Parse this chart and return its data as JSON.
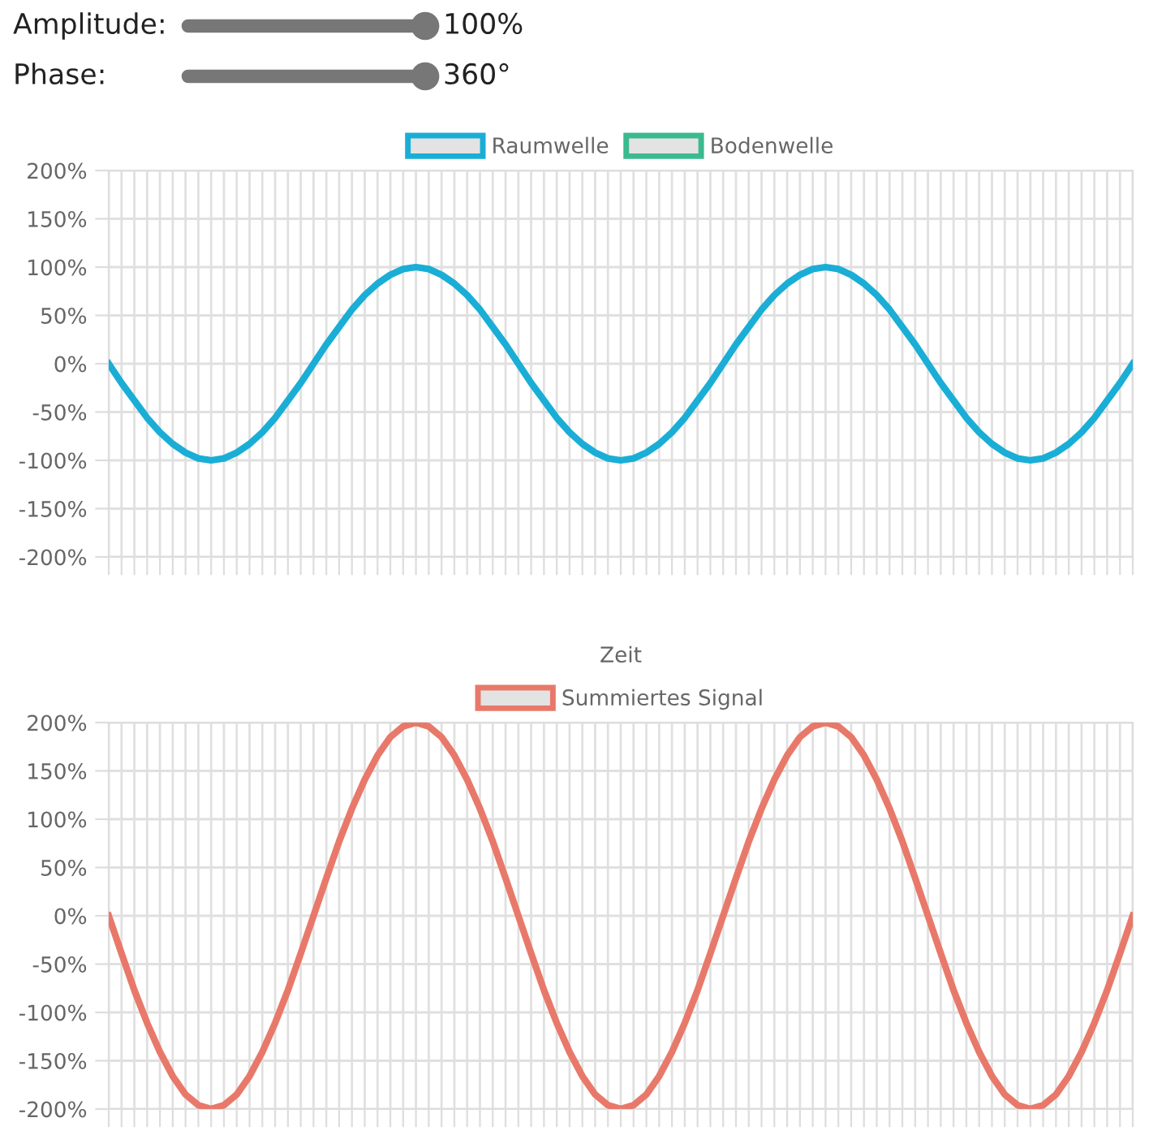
{
  "chart_data": [
    {
      "type": "other",
      "annotations": [
        "Amplitude:",
        "100%",
        "Phase:",
        "360°"
      ]
    },
    {
      "type": "line",
      "xlabel": "Zeit",
      "legend": "top",
      "grid": true,
      "marker": "none",
      "line_style": "solid",
      "categories": [
        null,
        null,
        null,
        null,
        null,
        null,
        null,
        null,
        null,
        null,
        null,
        null,
        null,
        null,
        null,
        null,
        null,
        null,
        null,
        null,
        null,
        null,
        null,
        null,
        null,
        null,
        null,
        null,
        null,
        null,
        null,
        null,
        null,
        null,
        null,
        null,
        null,
        null,
        null,
        null,
        null,
        null,
        null,
        null,
        null,
        null,
        null,
        null,
        null,
        null,
        null,
        null,
        null,
        null,
        null,
        null,
        null,
        null,
        null,
        null,
        null,
        null,
        null,
        null,
        null,
        null,
        null,
        null,
        null,
        null,
        null,
        null,
        null,
        null,
        null,
        null,
        null,
        null,
        null,
        null,
        null
      ],
      "ylim": [
        -200,
        200
      ],
      "yticks": [
        {
          "value": -200,
          "label": "-200%"
        },
        {
          "value": -150,
          "label": "-150%"
        },
        {
          "value": -100,
          "label": "-100%"
        },
        {
          "value": -50,
          "label": "-50%"
        },
        {
          "value": 0,
          "label": "0%"
        },
        {
          "value": 50,
          "label": "50%"
        },
        {
          "value": 100,
          "label": "100%"
        },
        {
          "value": 150,
          "label": "150%"
        },
        {
          "value": 200,
          "label": "200%"
        }
      ],
      "series": [
        {
          "name": "Raumwelle",
          "color": "#1aaed6",
          "values": [
            0,
            -20,
            -38,
            -56,
            -71,
            -83,
            -92,
            -98,
            -100,
            -98,
            -92,
            -83,
            -71,
            -56,
            -38,
            -20,
            0,
            20,
            38,
            56,
            71,
            83,
            92,
            98,
            100,
            98,
            92,
            83,
            71,
            56,
            38,
            20,
            0,
            -20,
            -38,
            -56,
            -71,
            -83,
            -92,
            -98,
            -100,
            -98,
            -92,
            -83,
            -71,
            -56,
            -38,
            -20,
            0,
            20,
            38,
            56,
            71,
            83,
            92,
            98,
            100,
            98,
            92,
            83,
            71,
            56,
            38,
            20,
            0,
            -20,
            -38,
            -56,
            -71,
            -83,
            -92,
            -98,
            -100,
            -98,
            -92,
            -83,
            -71,
            -56,
            -38,
            -20,
            0
          ]
        },
        {
          "name": "Bodenwelle",
          "color": "#3cba8f",
          "values": [
            null,
            null,
            null,
            null,
            null,
            null,
            null,
            null,
            null,
            null,
            null,
            null,
            null,
            null,
            null,
            null,
            null,
            null,
            null,
            null,
            null,
            null,
            null,
            null,
            null,
            null,
            null,
            null,
            null,
            null,
            null,
            null,
            null,
            null,
            null,
            null,
            null,
            null,
            null,
            null,
            null,
            null,
            null,
            null,
            null,
            null,
            null,
            null,
            null,
            null,
            null,
            null,
            null,
            null,
            null,
            null,
            null,
            null,
            null,
            null,
            null,
            null,
            null,
            null,
            null,
            null,
            null,
            null,
            null,
            null,
            null,
            null,
            null,
            null,
            null,
            null,
            null,
            null,
            null,
            null,
            null
          ]
        }
      ]
    },
    {
      "type": "line",
      "legend": "top",
      "grid": true,
      "marker": "none",
      "line_style": "solid",
      "categories": [
        null,
        null,
        null,
        null,
        null,
        null,
        null,
        null,
        null,
        null,
        null,
        null,
        null,
        null,
        null,
        null,
        null,
        null,
        null,
        null,
        null,
        null,
        null,
        null,
        null,
        null,
        null,
        null,
        null,
        null,
        null,
        null,
        null,
        null,
        null,
        null,
        null,
        null,
        null,
        null,
        null,
        null,
        null,
        null,
        null,
        null,
        null,
        null,
        null,
        null,
        null,
        null,
        null,
        null,
        null,
        null,
        null,
        null,
        null,
        null,
        null,
        null,
        null,
        null,
        null,
        null,
        null,
        null,
        null,
        null,
        null,
        null,
        null,
        null,
        null,
        null,
        null,
        null,
        null,
        null,
        null
      ],
      "ylim": [
        -200,
        200
      ],
      "yticks": [
        {
          "value": -200,
          "label": "-200%"
        },
        {
          "value": -150,
          "label": "-150%"
        },
        {
          "value": -100,
          "label": "-100%"
        },
        {
          "value": -50,
          "label": "-50%"
        },
        {
          "value": 0,
          "label": "0%"
        },
        {
          "value": 50,
          "label": "50%"
        },
        {
          "value": 100,
          "label": "100%"
        },
        {
          "value": 150,
          "label": "150%"
        },
        {
          "value": 200,
          "label": "200%"
        }
      ],
      "series": [
        {
          "name": "Summiertes Signal",
          "color": "#e8796a",
          "values": [
            0,
            -39,
            -77,
            -111,
            -141,
            -166,
            -185,
            -196,
            -200,
            -196,
            -185,
            -166,
            -141,
            -111,
            -77,
            -39,
            0,
            39,
            77,
            111,
            141,
            166,
            185,
            196,
            200,
            196,
            185,
            166,
            141,
            111,
            77,
            39,
            0,
            -39,
            -77,
            -111,
            -141,
            -166,
            -185,
            -196,
            -200,
            -196,
            -185,
            -166,
            -141,
            -111,
            -77,
            -39,
            0,
            39,
            77,
            111,
            141,
            166,
            185,
            196,
            200,
            196,
            185,
            166,
            141,
            111,
            77,
            39,
            0,
            -39,
            -77,
            -111,
            -141,
            -166,
            -185,
            -196,
            -200,
            -196,
            -185,
            -166,
            -141,
            -111,
            -77,
            -39,
            0
          ]
        }
      ]
    }
  ]
}
